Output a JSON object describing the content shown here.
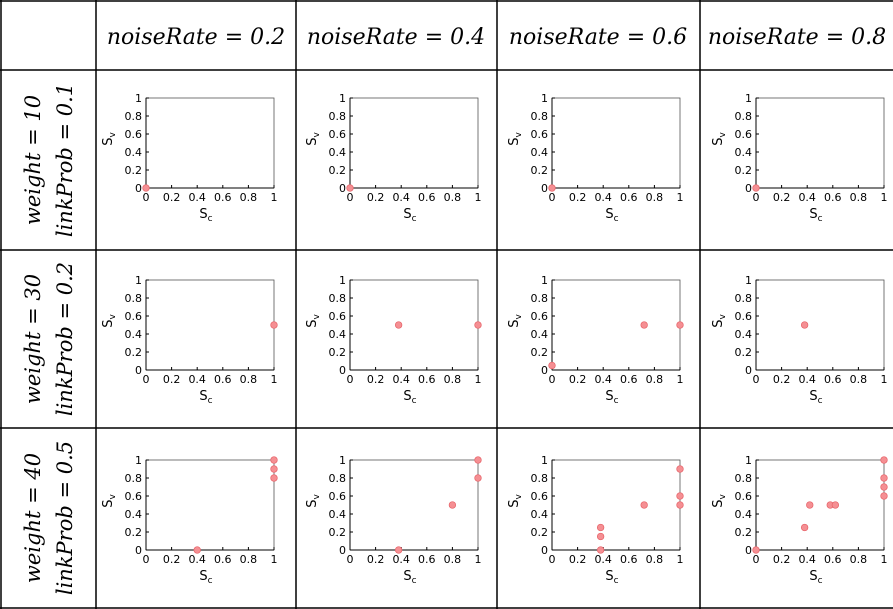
{
  "column_headers": [
    "noiseRate = 0.2",
    "noiseRate = 0.4",
    "noiseRate = 0.6",
    "noiseRate = 0.8"
  ],
  "row_headers": [
    [
      "weight = 10",
      "linkProb = 0.1"
    ],
    [
      "weight = 30",
      "linkProb = 0.2"
    ],
    [
      "weight = 40",
      "linkProb = 0.5"
    ]
  ],
  "axis_text": {
    "x_main": "S",
    "x_sub": "c",
    "y_main": "S",
    "y_sub": "v"
  },
  "colors": {
    "point_fill": "#f58f93",
    "point_stroke": "#e66066",
    "grid_line": "#000000"
  },
  "chart_data": [
    {
      "type": "scatter",
      "row": 0,
      "col": 0,
      "x": [
        0
      ],
      "y": [
        0
      ],
      "xlim": [
        0,
        1
      ],
      "ylim": [
        0,
        1
      ],
      "xticks": [
        "0",
        "0.2",
        "0.4",
        "0.6",
        "0.8",
        "1"
      ],
      "yticks": [
        "0",
        "0.2",
        "0.4",
        "0.6",
        "0.8",
        "1"
      ]
    },
    {
      "type": "scatter",
      "row": 0,
      "col": 1,
      "x": [
        0
      ],
      "y": [
        0
      ],
      "xlim": [
        0,
        1
      ],
      "ylim": [
        0,
        1
      ],
      "xticks": [
        "0",
        "0.2",
        "0.4",
        "0.6",
        "0.8",
        "1"
      ],
      "yticks": [
        "0",
        "0.2",
        "0.4",
        "0.6",
        "0.8",
        "1"
      ]
    },
    {
      "type": "scatter",
      "row": 0,
      "col": 2,
      "x": [
        0
      ],
      "y": [
        0
      ],
      "xlim": [
        0,
        1
      ],
      "ylim": [
        0,
        1
      ],
      "xticks": [
        "0",
        "0.2",
        "0.4",
        "0.6",
        "0.8",
        "1"
      ],
      "yticks": [
        "0",
        "0.2",
        "0.4",
        "0.6",
        "0.8",
        "1"
      ]
    },
    {
      "type": "scatter",
      "row": 0,
      "col": 3,
      "x": [
        0
      ],
      "y": [
        0
      ],
      "xlim": [
        0,
        1
      ],
      "ylim": [
        0,
        1
      ],
      "xticks": [
        "0",
        "0.2",
        "0.4",
        "0.6",
        "0.8",
        "1"
      ],
      "yticks": [
        "0",
        "0.2",
        "0.4",
        "0.6",
        "0.8",
        "1"
      ]
    },
    {
      "type": "scatter",
      "row": 1,
      "col": 0,
      "x": [
        1
      ],
      "y": [
        0.5
      ],
      "xlim": [
        0,
        1
      ],
      "ylim": [
        0,
        1
      ],
      "xticks": [
        "0",
        "0.2",
        "0.4",
        "0.6",
        "0.8",
        "1"
      ],
      "yticks": [
        "0",
        "0.2",
        "0.4",
        "0.6",
        "0.8",
        "1"
      ]
    },
    {
      "type": "scatter",
      "row": 1,
      "col": 1,
      "x": [
        0.38,
        1
      ],
      "y": [
        0.5,
        0.5
      ],
      "xlim": [
        0,
        1
      ],
      "ylim": [
        0,
        1
      ],
      "xticks": [
        "0",
        "0.2",
        "0.4",
        "0.6",
        "0.8",
        "1"
      ],
      "yticks": [
        "0",
        "0.2",
        "0.4",
        "0.6",
        "0.8",
        "1"
      ]
    },
    {
      "type": "scatter",
      "row": 1,
      "col": 2,
      "x": [
        0,
        0.72,
        1
      ],
      "y": [
        0.05,
        0.5,
        0.5
      ],
      "xlim": [
        0,
        1
      ],
      "ylim": [
        0,
        1
      ],
      "xticks": [
        "0",
        "0.2",
        "0.4",
        "0.6",
        "0.8",
        "1"
      ],
      "yticks": [
        "0",
        "0.2",
        "0.4",
        "0.6",
        "0.8",
        "1"
      ]
    },
    {
      "type": "scatter",
      "row": 1,
      "col": 3,
      "x": [
        0.38
      ],
      "y": [
        0.5
      ],
      "xlim": [
        0,
        1
      ],
      "ylim": [
        0,
        1
      ],
      "xticks": [
        "0",
        "0.2",
        "0.4",
        "0.6",
        "0.8",
        "1"
      ],
      "yticks": [
        "0",
        "0.2",
        "0.4",
        "0.6",
        "0.8",
        "1"
      ]
    },
    {
      "type": "scatter",
      "row": 2,
      "col": 0,
      "x": [
        0.4,
        1,
        1,
        1
      ],
      "y": [
        0,
        0.8,
        0.9,
        1
      ],
      "xlim": [
        0,
        1
      ],
      "ylim": [
        0,
        1
      ],
      "xticks": [
        "0",
        "0.2",
        "0.4",
        "0.6",
        "0.8",
        "1"
      ],
      "yticks": [
        "0",
        "0.2",
        "0.4",
        "0.6",
        "0.8",
        "1"
      ]
    },
    {
      "type": "scatter",
      "row": 2,
      "col": 1,
      "x": [
        0.38,
        0.8,
        1,
        1
      ],
      "y": [
        0,
        0.5,
        0.8,
        1
      ],
      "xlim": [
        0,
        1
      ],
      "ylim": [
        0,
        1
      ],
      "xticks": [
        "0",
        "0.2",
        "0.4",
        "0.6",
        "0.8",
        "1"
      ],
      "yticks": [
        "0",
        "0.2",
        "0.4",
        "0.6",
        "0.8",
        "1"
      ]
    },
    {
      "type": "scatter",
      "row": 2,
      "col": 2,
      "x": [
        0.38,
        0.38,
        0.38,
        0.72,
        1,
        1,
        1
      ],
      "y": [
        0,
        0.15,
        0.25,
        0.5,
        0.5,
        0.6,
        0.9
      ],
      "xlim": [
        0,
        1
      ],
      "ylim": [
        0,
        1
      ],
      "xticks": [
        "0",
        "0.2",
        "0.4",
        "0.6",
        "0.8",
        "1"
      ],
      "yticks": [
        "0",
        "0.2",
        "0.4",
        "0.6",
        "0.8",
        "1"
      ]
    },
    {
      "type": "scatter",
      "row": 2,
      "col": 3,
      "x": [
        0,
        0.38,
        0.42,
        0.58,
        0.62,
        1,
        1,
        1,
        1
      ],
      "y": [
        0,
        0.25,
        0.5,
        0.5,
        0.5,
        0.6,
        0.7,
        0.8,
        1
      ],
      "xlim": [
        0,
        1
      ],
      "ylim": [
        0,
        1
      ],
      "xticks": [
        "0",
        "0.2",
        "0.4",
        "0.6",
        "0.8",
        "1"
      ],
      "yticks": [
        "0",
        "0.2",
        "0.4",
        "0.6",
        "0.8",
        "1"
      ]
    }
  ]
}
